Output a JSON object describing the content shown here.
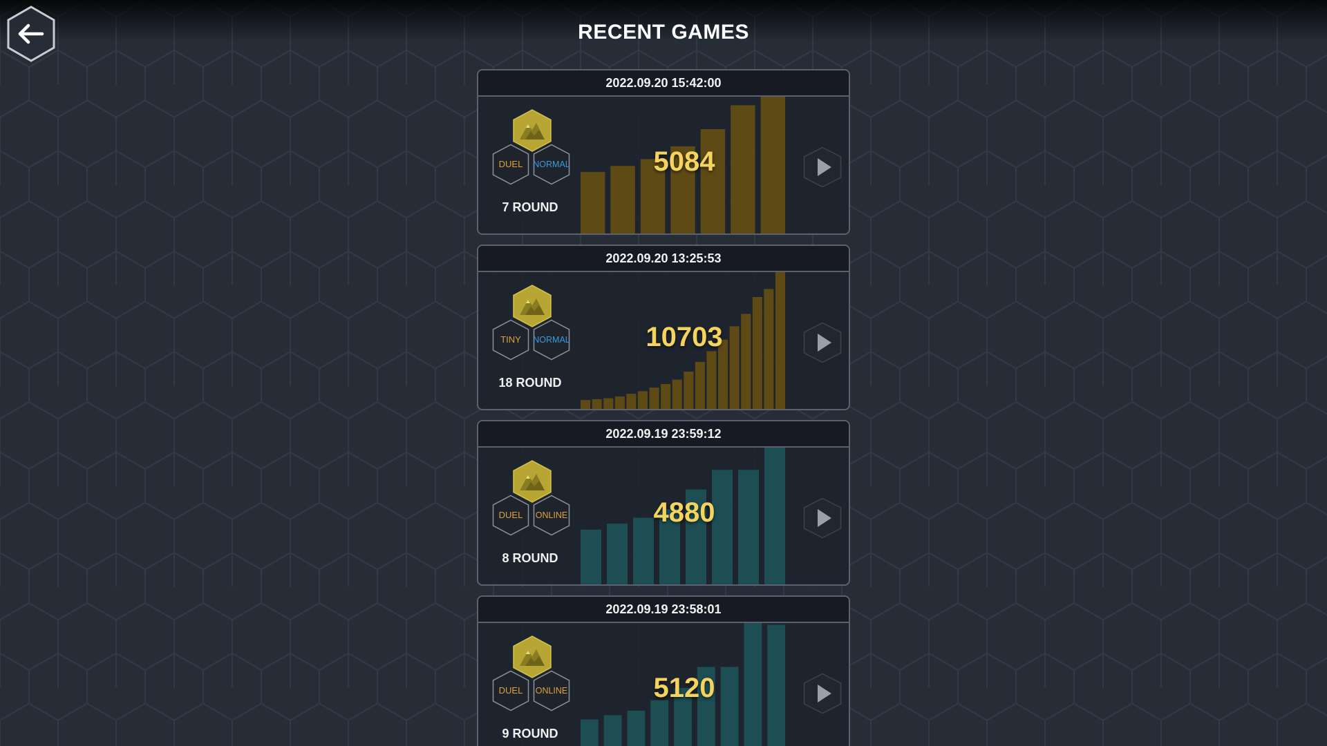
{
  "header": {
    "title": "RECENT GAMES",
    "back_icon": "arrow-left-icon"
  },
  "colors": {
    "background": "#262d37",
    "hex_grid": "#323a46",
    "gold_bar": "#5e4a14",
    "teal_bar": "#1c4e54",
    "score": "#f4d35e",
    "mode_tag": "#e0a13a",
    "normal_tag": "#3b9bd8",
    "online_tag": "#e0a13a",
    "map_hex": "#b8a634"
  },
  "games": [
    {
      "timestamp": "2022.09.20 15:42:00",
      "mode": "DUEL",
      "type": "NORMAL",
      "rounds": "7 ROUND",
      "score": "5084",
      "bar_color": "#5e4a14",
      "map_icon": "mountain-map-icon",
      "play_icon": "play-icon",
      "round_scores": [
        720,
        790,
        870,
        1020,
        1220,
        1500,
        1600
      ]
    },
    {
      "timestamp": "2022.09.20 13:25:53",
      "mode": "TINY",
      "type": "NORMAL",
      "rounds": "18 ROUND",
      "score": "10703",
      "bar_color": "#5e4a14",
      "map_icon": "mountain-map-icon",
      "play_icon": "play-icon",
      "round_scores": [
        10,
        11,
        12,
        14,
        17,
        20,
        24,
        28,
        33,
        42,
        53,
        65,
        78,
        93,
        107,
        126,
        135,
        154
      ]
    },
    {
      "timestamp": "2022.09.19 23:59:12",
      "mode": "DUEL",
      "type": "ONLINE",
      "rounds": "8 ROUND",
      "score": "4880",
      "bar_color": "#1c4e54",
      "map_icon": "mountain-map-icon",
      "play_icon": "play-icon",
      "round_scores": [
        640,
        710,
        780,
        880,
        1110,
        1340,
        1340,
        1600
      ]
    },
    {
      "timestamp": "2022.09.19 23:58:01",
      "mode": "DUEL",
      "type": "ONLINE",
      "rounds": "9 ROUND",
      "score": "5120",
      "bar_color": "#1c4e54",
      "map_icon": "mountain-map-icon",
      "play_icon": "play-icon",
      "round_scores": [
        460,
        510,
        560,
        680,
        820,
        1060,
        1060,
        1560,
        1540
      ]
    }
  ]
}
